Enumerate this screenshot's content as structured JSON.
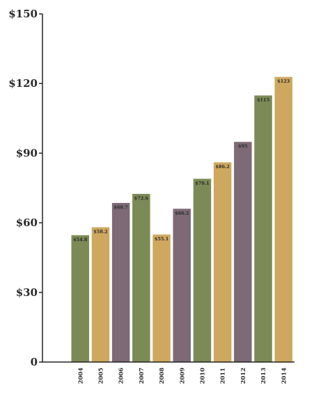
{
  "chart_data": {
    "type": "bar",
    "categories": [
      "2004",
      "2005",
      "2006",
      "2007",
      "2008",
      "2009",
      "2010",
      "2011",
      "2012",
      "2013",
      "2014"
    ],
    "values": [
      54.8,
      58.2,
      68.7,
      72.6,
      55.1,
      66.2,
      79.1,
      86.2,
      95,
      115,
      123
    ],
    "data_labels": [
      "$54.8",
      "$58.2",
      "$68.7",
      "$72.6",
      "$55.1",
      "$66.2",
      "$79.1",
      "$86.2",
      "$95",
      "$115",
      "$123"
    ],
    "bar_colors": [
      "#7c8a56",
      "#cfa85f",
      "#7d6a76",
      "#7c8a56",
      "#cfa85f",
      "#7d6a76",
      "#7c8a56",
      "#cfa85f",
      "#7d6a76",
      "#7c8a56",
      "#cfa85f"
    ],
    "ylim": [
      0,
      150
    ],
    "yticks": [
      0,
      30,
      60,
      90,
      120,
      150
    ],
    "ytick_labels": [
      "0",
      "$30",
      "$60",
      "$90",
      "$120",
      "$150"
    ],
    "title": "",
    "xlabel": "",
    "ylabel": "",
    "grid": false,
    "legend": "none"
  }
}
